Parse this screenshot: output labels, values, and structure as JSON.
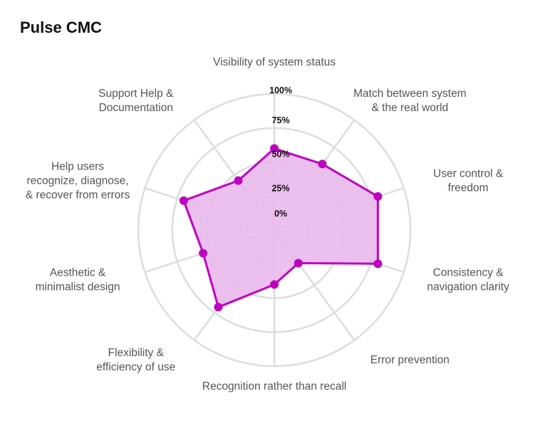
{
  "title": "Pulse CMC",
  "chart_data": {
    "type": "radar",
    "title": "Pulse CMC",
    "axes": [
      [
        "Visibility of system status"
      ],
      [
        "Match between system",
        "& the real world"
      ],
      [
        "User control &",
        "freedom"
      ],
      [
        "Consistency &",
        "navigation clarity"
      ],
      [
        "Error prevention"
      ],
      [
        "Recognition rather than recall"
      ],
      [
        "Flexibility &",
        "efficiency of use"
      ],
      [
        "Aesthetic &",
        "minimalist design"
      ],
      [
        "Help users",
        "recognize, diagnose,",
        "& recover from errors"
      ],
      [
        "Support Help &",
        "Documentation"
      ]
    ],
    "series": [
      {
        "values": [
          0.6,
          0.6,
          0.8,
          0.8,
          0.3,
          0.4,
          0.7,
          0.55,
          0.7,
          0.45
        ],
        "color": "#c000c0",
        "fill": "#e9b8ec"
      }
    ],
    "ticks": [
      "0%",
      "25%",
      "50%",
      "75%",
      "100%"
    ],
    "range": [
      0,
      1
    ],
    "grid": true,
    "legend": "none"
  }
}
